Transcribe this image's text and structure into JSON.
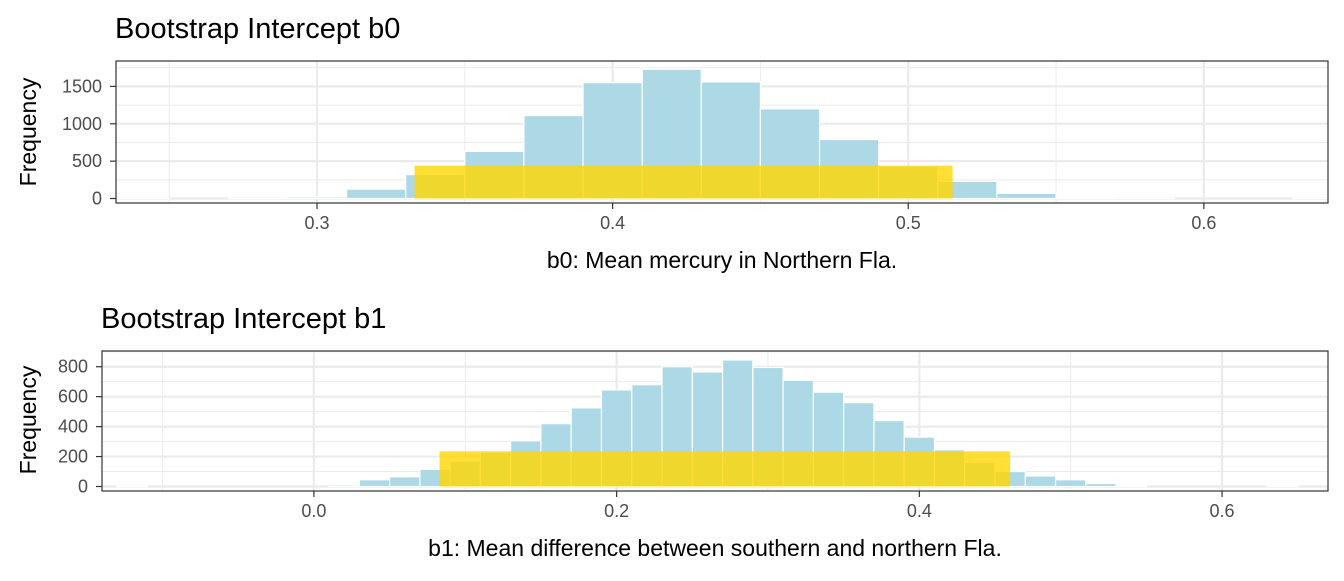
{
  "chart_data": [
    {
      "type": "bar",
      "title": "Bootstrap Intercept b0",
      "xlabel": "b0: Mean mercury in Northern Fla.",
      "ylabel": "Frequency",
      "xlim": [
        0.232,
        0.642
      ],
      "ylim": [
        -60,
        1840
      ],
      "xticks": [
        0.3,
        0.4,
        0.5,
        0.6
      ],
      "xtick_labels": [
        "0.3",
        "0.4",
        "0.5",
        "0.6"
      ],
      "yticks": [
        0,
        500,
        1000,
        1500
      ],
      "ytick_labels": [
        "0",
        "500",
        "1000",
        "1500"
      ],
      "grid": true,
      "legend": "none",
      "colors": {
        "bars": "#ADD8E6",
        "interval": "#FFD700",
        "grid": "#EBEBEB",
        "panel_border": "#333333"
      },
      "series": [
        {
          "bin_width": 0.02,
          "x": [
            0.24,
            0.26,
            0.28,
            0.3,
            0.32,
            0.34,
            0.36,
            0.38,
            0.4,
            0.42,
            0.44,
            0.46,
            0.48,
            0.5,
            0.52,
            0.54,
            0.56,
            0.58,
            0.6,
            0.62,
            0.64
          ],
          "values": [
            3,
            0,
            2,
            20,
            125,
            320,
            630,
            1110,
            1550,
            1730,
            1560,
            1200,
            790,
            430,
            230,
            70,
            10,
            3,
            0,
            0,
            3
          ]
        }
      ],
      "interval": {
        "from": 0.333,
        "to": 0.515,
        "height": 440,
        "label": ""
      }
    },
    {
      "type": "bar",
      "title": "Bootstrap Intercept b1",
      "xlabel": "b1: Mean difference between southern and northern Fla.",
      "ylabel": "Frequency",
      "xlim": [
        -0.14,
        0.67
      ],
      "ylim": [
        -30,
        905
      ],
      "xticks": [
        0.0,
        0.2,
        0.4,
        0.6
      ],
      "xtick_labels": [
        "0.0",
        "0.2",
        "0.4",
        "0.6"
      ],
      "yticks": [
        0,
        200,
        400,
        600,
        800
      ],
      "ytick_labels": [
        "0",
        "200",
        "400",
        "600",
        "800"
      ],
      "grid": true,
      "legend": "none",
      "colors": {
        "bars": "#ADD8E6",
        "interval": "#FFD700",
        "grid": "#EBEBEB",
        "panel_border": "#333333"
      },
      "series": [
        {
          "bin_width": 0.02,
          "x": [
            -0.12,
            -0.1,
            -0.08,
            -0.06,
            -0.04,
            -0.02,
            0.0,
            0.02,
            0.04,
            0.06,
            0.08,
            0.1,
            0.12,
            0.14,
            0.16,
            0.18,
            0.2,
            0.22,
            0.24,
            0.26,
            0.28,
            0.3,
            0.32,
            0.34,
            0.36,
            0.38,
            0.4,
            0.42,
            0.44,
            0.46,
            0.48,
            0.5,
            0.52,
            0.54,
            0.56,
            0.58,
            0.6,
            0.62,
            0.64
          ],
          "values": [
            2,
            0,
            0,
            0,
            0,
            0,
            0,
            10,
            45,
            65,
            115,
            170,
            230,
            305,
            420,
            525,
            645,
            680,
            800,
            765,
            845,
            795,
            710,
            630,
            560,
            440,
            330,
            245,
            160,
            100,
            70,
            45,
            20,
            5,
            0,
            0,
            0,
            0,
            3
          ]
        }
      ],
      "interval": {
        "from": 0.083,
        "to": 0.46,
        "height": 235,
        "label": ""
      }
    }
  ]
}
